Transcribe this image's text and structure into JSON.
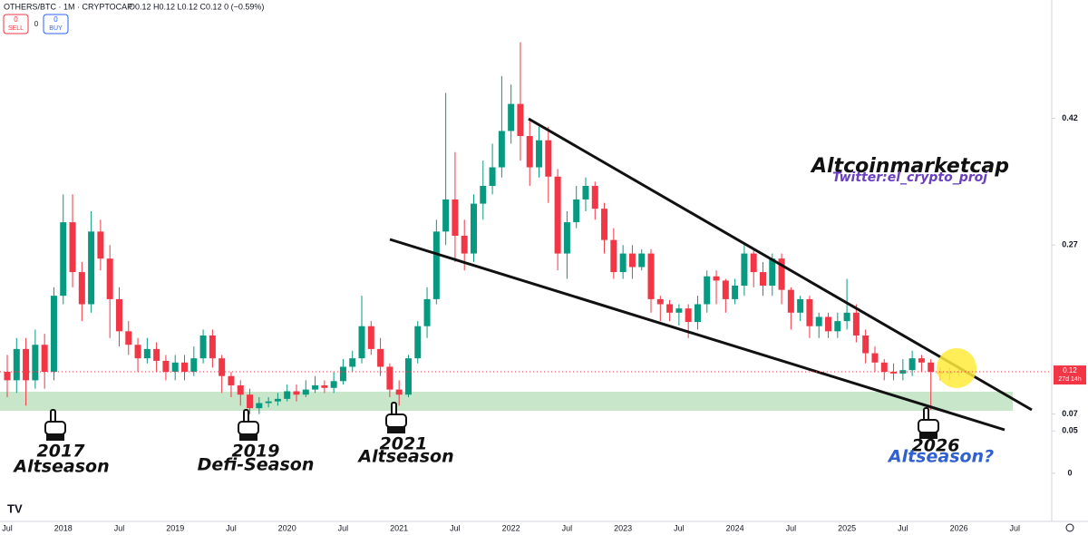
{
  "chart_data": {
    "type": "candlestick",
    "symbol": "OTHERS/BTC · 1M · CRYPTOCAP",
    "ohlc_legend": "O0.12 H0.12 L0.12 C0.12 0 (−0.59%)",
    "buttons": {
      "sell_count": "0",
      "sell": "SELL",
      "spread": "0",
      "buy_count": "0",
      "buy": "BUY"
    },
    "x": [
      "2017-07",
      "2017-08",
      "2017-09",
      "2017-10",
      "2017-11",
      "2017-12",
      "2018-01",
      "2018-02",
      "2018-03",
      "2018-04",
      "2018-05",
      "2018-06",
      "2018-07",
      "2018-08",
      "2018-09",
      "2018-10",
      "2018-11",
      "2018-12",
      "2019-01",
      "2019-02",
      "2019-03",
      "2019-04",
      "2019-05",
      "2019-06",
      "2019-07",
      "2019-08",
      "2019-09",
      "2019-10",
      "2019-11",
      "2019-12",
      "2020-01",
      "2020-02",
      "2020-03",
      "2020-04",
      "2020-05",
      "2020-06",
      "2020-07",
      "2020-08",
      "2020-09",
      "2020-10",
      "2020-11",
      "2020-12",
      "2021-01",
      "2021-02",
      "2021-03",
      "2021-04",
      "2021-05",
      "2021-06",
      "2021-07",
      "2021-08",
      "2021-09",
      "2021-10",
      "2021-11",
      "2021-12",
      "2022-01",
      "2022-02",
      "2022-03",
      "2022-04",
      "2022-05",
      "2022-06",
      "2022-07",
      "2022-08",
      "2022-09",
      "2022-10",
      "2022-11",
      "2022-12",
      "2023-01",
      "2023-02",
      "2023-03",
      "2023-04",
      "2023-05",
      "2023-06",
      "2023-07",
      "2023-08",
      "2023-09",
      "2023-10",
      "2023-11",
      "2023-12",
      "2024-01",
      "2024-02",
      "2024-03",
      "2024-04",
      "2024-05",
      "2024-06",
      "2024-07",
      "2024-08",
      "2024-09",
      "2024-10",
      "2024-11",
      "2024-12",
      "2025-01",
      "2025-02",
      "2025-03",
      "2025-04",
      "2025-05",
      "2025-06",
      "2025-07",
      "2025-08",
      "2025-09",
      "2025-10",
      "2025-11",
      "2025-12",
      "2026-01"
    ],
    "open": [
      0.12,
      0.11,
      0.147,
      0.11,
      0.152,
      0.12,
      0.21,
      0.297,
      0.238,
      0.2,
      0.286,
      0.254,
      0.206,
      0.168,
      0.152,
      0.136,
      0.147,
      0.133,
      0.12,
      0.131,
      0.12,
      0.136,
      0.163,
      0.136,
      0.115,
      0.104,
      0.093,
      0.077,
      0.083,
      0.085,
      0.088,
      0.097,
      0.093,
      0.099,
      0.104,
      0.101,
      0.109,
      0.126,
      0.136,
      0.174,
      0.147,
      0.126,
      0.099,
      0.093,
      0.136,
      0.174,
      0.206,
      0.286,
      0.324,
      0.281,
      0.26,
      0.319,
      0.34,
      0.362,
      0.405,
      0.437,
      0.399,
      0.362,
      0.394,
      0.351,
      0.26,
      0.297,
      0.324,
      0.34,
      0.313,
      0.276,
      0.238,
      0.26,
      0.244,
      0.26,
      0.206,
      0.2,
      0.19,
      0.195,
      0.179,
      0.2,
      0.233,
      0.228,
      0.206,
      0.222,
      0.26,
      0.238,
      0.222,
      0.254,
      0.217,
      0.19,
      0.206,
      0.174,
      0.185,
      0.168,
      0.18,
      0.19,
      0.163,
      0.142,
      0.131,
      0.12,
      0.118,
      0.122,
      0.136,
      0.131,
      0.12,
      0.118,
      0.12
    ],
    "high": [
      0.14,
      0.16,
      0.16,
      0.17,
      0.165,
      0.22,
      0.33,
      0.33,
      0.25,
      0.31,
      0.3,
      0.27,
      0.22,
      0.18,
      0.16,
      0.16,
      0.155,
      0.14,
      0.14,
      0.14,
      0.15,
      0.17,
      0.17,
      0.14,
      0.12,
      0.11,
      0.1,
      0.09,
      0.09,
      0.095,
      0.105,
      0.105,
      0.11,
      0.115,
      0.11,
      0.12,
      0.135,
      0.145,
      0.21,
      0.18,
      0.16,
      0.13,
      0.11,
      0.14,
      0.18,
      0.22,
      0.3,
      0.45,
      0.38,
      0.3,
      0.33,
      0.37,
      0.39,
      0.47,
      0.46,
      0.51,
      0.42,
      0.41,
      0.41,
      0.36,
      0.31,
      0.34,
      0.35,
      0.345,
      0.32,
      0.29,
      0.27,
      0.27,
      0.265,
      0.265,
      0.21,
      0.205,
      0.2,
      0.2,
      0.21,
      0.24,
      0.24,
      0.23,
      0.23,
      0.27,
      0.265,
      0.25,
      0.26,
      0.26,
      0.22,
      0.21,
      0.21,
      0.19,
      0.19,
      0.19,
      0.23,
      0.2,
      0.17,
      0.15,
      0.135,
      0.13,
      0.135,
      0.145,
      0.14,
      0.135,
      0.125,
      0.125,
      0.125
    ],
    "low": [
      0.09,
      0.095,
      0.08,
      0.1,
      0.1,
      0.11,
      0.2,
      0.22,
      0.18,
      0.19,
      0.24,
      0.16,
      0.15,
      0.14,
      0.12,
      0.13,
      0.12,
      0.11,
      0.11,
      0.11,
      0.115,
      0.13,
      0.125,
      0.095,
      0.09,
      0.08,
      0.07,
      0.07,
      0.078,
      0.08,
      0.085,
      0.085,
      0.09,
      0.095,
      0.095,
      0.095,
      0.105,
      0.12,
      0.13,
      0.14,
      0.115,
      0.09,
      0.08,
      0.09,
      0.13,
      0.16,
      0.2,
      0.27,
      0.25,
      0.24,
      0.25,
      0.3,
      0.33,
      0.35,
      0.39,
      0.37,
      0.34,
      0.35,
      0.32,
      0.24,
      0.23,
      0.29,
      0.31,
      0.3,
      0.26,
      0.23,
      0.23,
      0.23,
      0.24,
      0.19,
      0.18,
      0.18,
      0.175,
      0.16,
      0.17,
      0.19,
      0.2,
      0.19,
      0.2,
      0.21,
      0.22,
      0.21,
      0.21,
      0.2,
      0.17,
      0.18,
      0.16,
      0.16,
      0.16,
      0.16,
      0.17,
      0.155,
      0.13,
      0.12,
      0.11,
      0.11,
      0.11,
      0.115,
      0.12,
      0.075,
      0.11,
      0.11,
      0.115
    ],
    "close": [
      0.11,
      0.147,
      0.11,
      0.152,
      0.12,
      0.21,
      0.297,
      0.238,
      0.2,
      0.286,
      0.254,
      0.206,
      0.168,
      0.152,
      0.136,
      0.147,
      0.133,
      0.12,
      0.131,
      0.12,
      0.136,
      0.163,
      0.136,
      0.115,
      0.104,
      0.093,
      0.077,
      0.083,
      0.085,
      0.088,
      0.097,
      0.093,
      0.099,
      0.104,
      0.101,
      0.109,
      0.126,
      0.136,
      0.174,
      0.147,
      0.126,
      0.099,
      0.093,
      0.136,
      0.174,
      0.206,
      0.286,
      0.324,
      0.281,
      0.26,
      0.319,
      0.34,
      0.362,
      0.405,
      0.437,
      0.399,
      0.362,
      0.394,
      0.351,
      0.26,
      0.297,
      0.324,
      0.34,
      0.313,
      0.276,
      0.238,
      0.26,
      0.244,
      0.26,
      0.206,
      0.2,
      0.19,
      0.195,
      0.179,
      0.2,
      0.233,
      0.228,
      0.206,
      0.222,
      0.26,
      0.238,
      0.222,
      0.254,
      0.217,
      0.19,
      0.206,
      0.174,
      0.185,
      0.168,
      0.18,
      0.19,
      0.163,
      0.142,
      0.131,
      0.12,
      0.118,
      0.122,
      0.136,
      0.131,
      0.12,
      0.118,
      0.12,
      0.12
    ],
    "up_color": "#089981",
    "down_color": "#f23645",
    "ylim": [
      -0.057,
      0.56
    ],
    "yticks": [
      0.42,
      0.27,
      0.07,
      0.05,
      0
    ],
    "xticks": [
      {
        "value": "2017-07",
        "label": "Jul"
      },
      {
        "value": "2018-01",
        "label": "2018"
      },
      {
        "value": "2018-07",
        "label": "Jul"
      },
      {
        "value": "2019-01",
        "label": "2019"
      },
      {
        "value": "2019-07",
        "label": "Jul"
      },
      {
        "value": "2020-01",
        "label": "2020"
      },
      {
        "value": "2020-07",
        "label": "Jul"
      },
      {
        "value": "2021-01",
        "label": "2021"
      },
      {
        "value": "2021-07",
        "label": "Jul"
      },
      {
        "value": "2022-01",
        "label": "2022"
      },
      {
        "value": "2022-07",
        "label": "Jul"
      },
      {
        "value": "2023-01",
        "label": "2023"
      },
      {
        "value": "2023-07",
        "label": "Jul"
      },
      {
        "value": "2024-01",
        "label": "2024"
      },
      {
        "value": "2024-07",
        "label": "Jul"
      },
      {
        "value": "2025-01",
        "label": "2025"
      },
      {
        "value": "2025-07",
        "label": "Jul"
      },
      {
        "value": "2026-01",
        "label": "2026"
      },
      {
        "value": "2026-07",
        "label": "Jul"
      }
    ],
    "last_price": 0.12,
    "countdown": "27d 14h",
    "grid": false,
    "annotations": {
      "brand": "Altcoinmarketcap",
      "twitter": "Twitter:el_crypto_proj",
      "y2017": "2017",
      "alt2017": "Altseason",
      "y2019": "2019",
      "defi2019": "Defi-Season",
      "y2021": "2021",
      "alt2021": "Altseason",
      "y2026": "2026",
      "alt2026": "Altseason?"
    }
  }
}
